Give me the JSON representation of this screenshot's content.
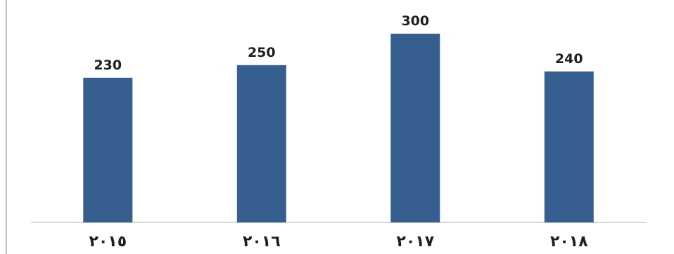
{
  "chart_data": {
    "type": "bar",
    "title": "",
    "xlabel": "",
    "ylabel": "",
    "categories": [
      "٢٠١٥",
      "٢٠١٦",
      "٢٠١٧",
      "٢٠١٨"
    ],
    "values": [
      230,
      250,
      300,
      240
    ],
    "data_labels": [
      "230",
      "250",
      "300",
      "240"
    ],
    "ylim": [
      0,
      300
    ],
    "grid": false,
    "legend": "none",
    "bar_color": "#365f8f"
  }
}
